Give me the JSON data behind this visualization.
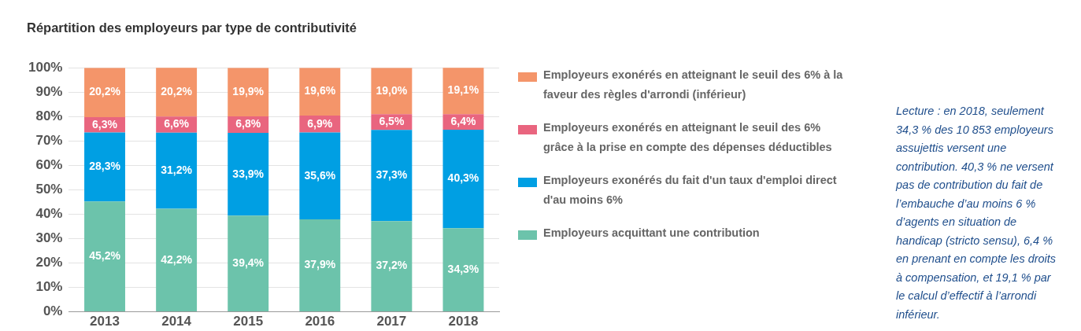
{
  "chart_data": {
    "type": "bar",
    "title": "Répartition des employeurs par type de contributivité",
    "categories": [
      "2013",
      "2014",
      "2015",
      "2016",
      "2017",
      "2018"
    ],
    "stacked": true,
    "ylim": [
      0,
      100
    ],
    "yticks": [
      {
        "value": 0,
        "label": "0%"
      },
      {
        "value": 10,
        "label": "10%"
      },
      {
        "value": 20,
        "label": "20%"
      },
      {
        "value": 30,
        "label": "30%"
      },
      {
        "value": 40,
        "label": "40%"
      },
      {
        "value": 50,
        "label": "50%"
      },
      {
        "value": 60,
        "label": "60%"
      },
      {
        "value": 70,
        "label": "70%"
      },
      {
        "value": 80,
        "label": "80%"
      },
      {
        "value": 90,
        "label": "90%"
      },
      {
        "value": 100,
        "label": "100%"
      }
    ],
    "grid": "y",
    "legend": "right",
    "series": [
      {
        "name": "Employeurs acquittant une contribution",
        "color": "#6cc3ab",
        "values": [
          45.2,
          42.2,
          39.4,
          37.9,
          37.2,
          34.3
        ],
        "value_labels": [
          "45,2%",
          "42,2%",
          "39,4%",
          "37,9%",
          "37,2%",
          "34,3%"
        ]
      },
      {
        "name": "Employeurs exonérés du fait d'un taux d'emploi direct d'au moins 6%",
        "color": "#009fe3",
        "values": [
          28.3,
          31.2,
          33.9,
          35.6,
          37.3,
          40.3
        ],
        "value_labels": [
          "28,3%",
          "31,2%",
          "33,9%",
          "35,6%",
          "37,3%",
          "40,3%"
        ]
      },
      {
        "name": "Employeurs exonérés en atteignant le seuil des 6% grâce à la prise en compte des dépenses déductibles",
        "color": "#e9657f",
        "values": [
          6.3,
          6.6,
          6.8,
          6.9,
          6.5,
          6.4
        ],
        "value_labels": [
          "6,3%",
          "6,6%",
          "6,8%",
          "6,9%",
          "6,5%",
          "6,4%"
        ]
      },
      {
        "name": "Employeurs exonérés en atteignant le seuil des 6% à la faveur des règles d'arrondi (inférieur)",
        "color": "#f4956a",
        "values": [
          20.2,
          20.2,
          19.9,
          19.6,
          19.0,
          19.1
        ],
        "value_labels": [
          "20,2%",
          "20,2%",
          "19,9%",
          "19,6%",
          "19,0%",
          "19,1%"
        ]
      }
    ],
    "annotations": [
      "Lecture : en 2018, seulement 34,3 % des 10 853 employeurs assujettis versent une contribution. 40,3 % ne versent pas de contribution du fait de l’embauche d’au moins 6 % d’agents en situation de handicap (stricto sensu), 6,4 % en prenant en compte les droits à compensation, et 19,1 % par le calcul d’effectif à l’arrondi inférieur."
    ]
  }
}
